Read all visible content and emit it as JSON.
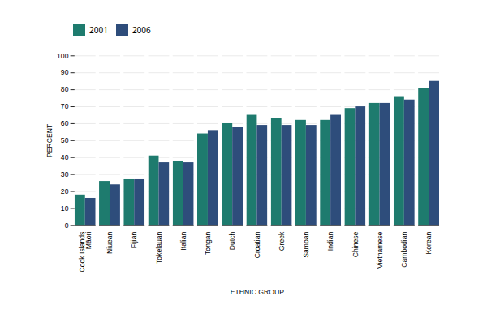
{
  "chart_data": {
    "type": "bar",
    "categories": [
      "Cook Islands\nMāori",
      "Niuean",
      "Fijian",
      "Tokelauan",
      "Italian",
      "Tongan",
      "Dutch",
      "Croatian",
      "Greek",
      "Samoan",
      "Indian",
      "Chinese",
      "Vietnamese",
      "Cambodian",
      "Korean"
    ],
    "series": [
      {
        "name": "2001",
        "color": "#1e7b6e",
        "values": [
          18,
          26,
          27,
          41,
          38,
          54,
          60,
          65,
          63,
          62,
          62,
          69,
          72,
          76,
          81
        ]
      },
      {
        "name": "2006",
        "color": "#2e4d7b",
        "values": [
          16,
          24,
          27,
          37,
          37,
          56,
          58,
          59,
          59,
          59,
          65,
          70,
          72,
          74,
          85
        ]
      }
    ],
    "xlabel": "ETHNIC GROUP",
    "ylabel": "PERCENT",
    "ylim": [
      0,
      100
    ],
    "yticks": [
      0,
      10,
      20,
      30,
      40,
      50,
      60,
      70,
      80,
      90,
      100
    ],
    "grid": true,
    "legend": "upper left"
  }
}
